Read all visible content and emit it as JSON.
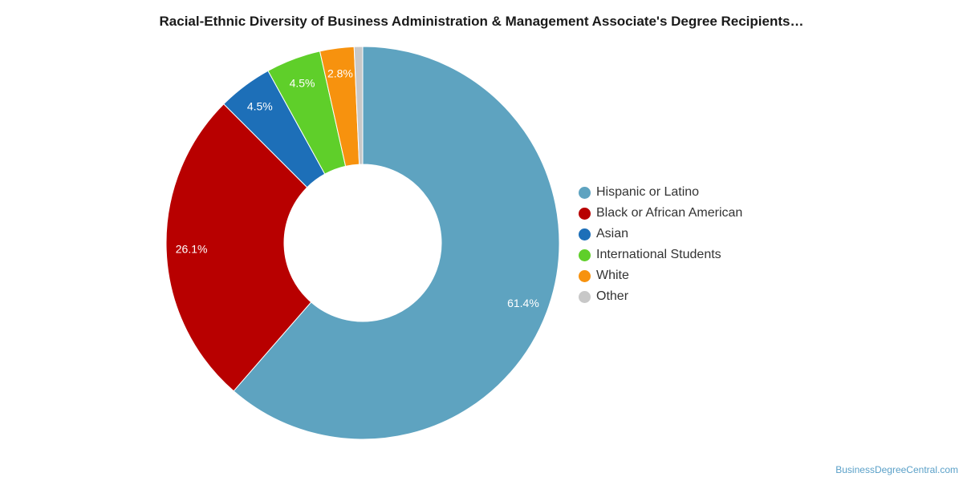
{
  "chart_data": {
    "type": "pie",
    "title": "Racial-Ethnic Diversity of Business Administration & Management Associate's Degree Recipients…",
    "donut": true,
    "legend_position": "right",
    "slices": [
      {
        "name": "Hispanic or Latino",
        "value": 61.4,
        "label": "61.4%",
        "color": "#5ea3c0"
      },
      {
        "name": "Black or African American",
        "value": 26.1,
        "label": "26.1%",
        "color": "#b80000"
      },
      {
        "name": "Asian",
        "value": 4.5,
        "label": "4.5%",
        "color": "#1d6fb8"
      },
      {
        "name": "International Students",
        "value": 4.5,
        "label": "4.5%",
        "color": "#5fcf2a"
      },
      {
        "name": "White",
        "value": 2.8,
        "label": "2.8%",
        "color": "#f7920e"
      },
      {
        "name": "Other",
        "value": 0.7,
        "label": "",
        "color": "#c8c8c8"
      }
    ]
  },
  "footer": {
    "credit": "BusinessDegreeCentral.com"
  }
}
